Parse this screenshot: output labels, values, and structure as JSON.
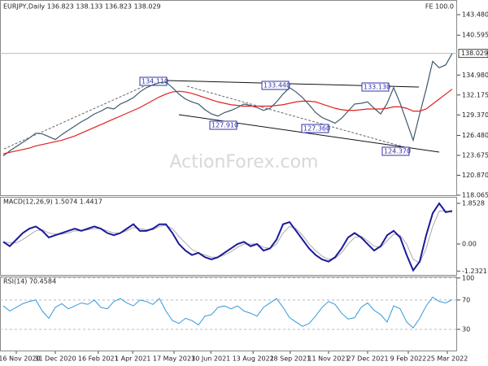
{
  "chart_data": [
    {
      "type": "line",
      "title": "EURJPY,Daily  136.823 138.133 136.823 138.029",
      "corner_text": "FE 100.0",
      "watermark": "ActionForex.com",
      "xlim": [
        -0.5,
        69.75
      ],
      "ylim": [
        118.065,
        144.97
      ],
      "yticks": [
        {
          "value": 143.48,
          "label": "143.480"
        },
        140.595,
        {
          "value": 134.98,
          "label": "134.980"
        },
        132.175,
        {
          "value": 129.37,
          "label": "129.370"
        },
        {
          "value": 126.48,
          "label": "126.480"
        },
        123.675,
        {
          "value": 120.87,
          "label": "120.870"
        },
        118.065
      ],
      "last_price": 138.029,
      "annotations": [
        "134.110",
        "133.440",
        "133.130",
        "127.910",
        "127.360",
        "124.370"
      ],
      "series": [
        {
          "color": "#3c5a6e",
          "values": [
            123.6,
            124.3,
            124.9,
            125.5,
            126.1,
            126.8,
            126.7,
            126.3,
            125.9,
            126.6,
            127.2,
            127.8,
            128.4,
            128.9,
            129.5,
            129.9,
            130.4,
            130.2,
            130.9,
            131.3,
            131.8,
            132.6,
            133.2,
            133.6,
            133.9,
            134.0,
            133.2,
            132.3,
            131.6,
            131.2,
            130.9,
            130.1,
            129.5,
            129.2,
            129.7,
            130.0,
            130.4,
            130.9,
            130.7,
            130.4,
            130.0,
            130.3,
            131.2,
            132.3,
            133.2,
            132.6,
            131.8,
            130.8,
            129.7,
            129.0,
            128.6,
            128.2,
            128.9,
            129.9,
            130.9,
            131.0,
            131.2,
            130.3,
            129.5,
            131.0,
            133.2,
            131.0,
            128.4,
            125.8,
            129.5,
            133.0,
            136.9,
            136.0,
            136.4,
            138.029
          ]
        },
        {
          "color": "#e02020",
          "values": [
            123.9,
            124.1,
            124.3,
            124.5,
            124.7,
            125.0,
            125.2,
            125.4,
            125.6,
            125.8,
            126.1,
            126.4,
            126.8,
            127.2,
            127.6,
            128.0,
            128.4,
            128.8,
            129.2,
            129.6,
            130.0,
            130.4,
            130.9,
            131.4,
            131.9,
            132.3,
            132.6,
            132.7,
            132.6,
            132.4,
            132.1,
            131.8,
            131.5,
            131.2,
            131.0,
            130.8,
            130.7,
            130.6,
            130.6,
            130.6,
            130.6,
            130.6,
            130.7,
            130.8,
            131.0,
            131.2,
            131.3,
            131.3,
            131.2,
            130.9,
            130.6,
            130.3,
            130.1,
            130.0,
            130.0,
            130.1,
            130.2,
            130.2,
            130.2,
            130.3,
            130.5,
            130.5,
            130.3,
            129.9,
            129.9,
            130.2,
            130.9,
            131.6,
            132.3,
            133.0
          ]
        }
      ]
    },
    {
      "type": "line",
      "title": "MACD(12,26,9) 1.5074 1.4417",
      "xlim": [
        -0.5,
        69.75
      ],
      "ylim": [
        -1.407,
        2.149
      ],
      "yticks": [
        1.8528,
        {
          "value": 0,
          "label": "0.00"
        },
        -1.2321
      ],
      "series": [
        {
          "color": "#aaaaaa",
          "width": 1,
          "values": [
            0.1,
            0.05,
            0.05,
            0.2,
            0.4,
            0.6,
            0.65,
            0.5,
            0.45,
            0.45,
            0.5,
            0.6,
            0.6,
            0.65,
            0.7,
            0.7,
            0.6,
            0.5,
            0.5,
            0.6,
            0.75,
            0.7,
            0.65,
            0.65,
            0.8,
            0.85,
            0.7,
            0.35,
            0.05,
            -0.25,
            -0.4,
            -0.5,
            -0.6,
            -0.6,
            -0.5,
            -0.35,
            -0.15,
            0.0,
            0.0,
            0.0,
            -0.15,
            -0.2,
            0.0,
            0.5,
            0.8,
            0.7,
            0.4,
            0.0,
            -0.3,
            -0.55,
            -0.7,
            -0.65,
            -0.4,
            0.0,
            0.3,
            0.35,
            0.15,
            -0.1,
            -0.15,
            0.15,
            0.45,
            0.4,
            0.0,
            -0.7,
            -0.85,
            -0.2,
            0.8,
            1.5,
            1.5,
            1.4417
          ]
        },
        {
          "color": "#1a1a9a",
          "width": 2,
          "values": [
            0.1,
            -0.1,
            0.2,
            0.5,
            0.7,
            0.8,
            0.6,
            0.3,
            0.4,
            0.5,
            0.6,
            0.7,
            0.6,
            0.7,
            0.8,
            0.7,
            0.5,
            0.4,
            0.5,
            0.7,
            0.9,
            0.6,
            0.6,
            0.7,
            0.9,
            0.9,
            0.5,
            0.0,
            -0.3,
            -0.5,
            -0.4,
            -0.6,
            -0.7,
            -0.6,
            -0.4,
            -0.2,
            0.0,
            0.1,
            -0.1,
            0.0,
            -0.3,
            -0.2,
            0.2,
            0.9,
            1.0,
            0.6,
            0.2,
            -0.2,
            -0.5,
            -0.7,
            -0.8,
            -0.6,
            -0.2,
            0.3,
            0.5,
            0.3,
            0.0,
            -0.3,
            -0.1,
            0.4,
            0.6,
            0.3,
            -0.5,
            -1.2,
            -0.8,
            0.4,
            1.4,
            1.85,
            1.45,
            1.5074
          ]
        }
      ]
    },
    {
      "type": "line",
      "title": "RSI(14) 70.4584",
      "grid": true,
      "xlim": [
        -0.5,
        69.75
      ],
      "ylim": [
        0,
        102
      ],
      "yticks": [
        100,
        70,
        30
      ],
      "xticks": [
        {
          "value": 2,
          "label": "16 Nov 2020"
        },
        {
          "value": 8,
          "label": "31 Dec 2020"
        },
        {
          "value": 14.6,
          "label": "16 Feb 2021"
        },
        {
          "value": 19.9,
          "label": "1 Apr 2021"
        },
        {
          "value": 26.25,
          "label": "17 May 2021"
        },
        {
          "value": 31.9,
          "label": "30 Jun 2021"
        },
        {
          "value": 38.4,
          "label": "13 Aug 2021"
        },
        {
          "value": 44.1,
          "label": "28 Sep 2021"
        },
        {
          "value": 50,
          "label": "11 Nov 2021"
        },
        {
          "value": 56,
          "label": "27 Dec 2021"
        },
        {
          "value": 62.25,
          "label": "9 Feb 2022"
        },
        {
          "value": 68.25,
          "label": "25 Mar 2022"
        }
      ],
      "series": [
        {
          "color": "#3399dd",
          "width": 1,
          "values": [
            62,
            55,
            60,
            65,
            68,
            70,
            55,
            45,
            60,
            65,
            58,
            62,
            66,
            64,
            70,
            60,
            58,
            68,
            72,
            66,
            62,
            70,
            68,
            64,
            72,
            55,
            42,
            38,
            45,
            42,
            36,
            48,
            50,
            60,
            62,
            58,
            62,
            55,
            52,
            48,
            60,
            66,
            72,
            60,
            46,
            40,
            34,
            38,
            48,
            60,
            68,
            64,
            52,
            44,
            46,
            60,
            66,
            56,
            50,
            40,
            62,
            58,
            40,
            32,
            45,
            62,
            74,
            68,
            66,
            70.4584
          ]
        }
      ]
    }
  ]
}
